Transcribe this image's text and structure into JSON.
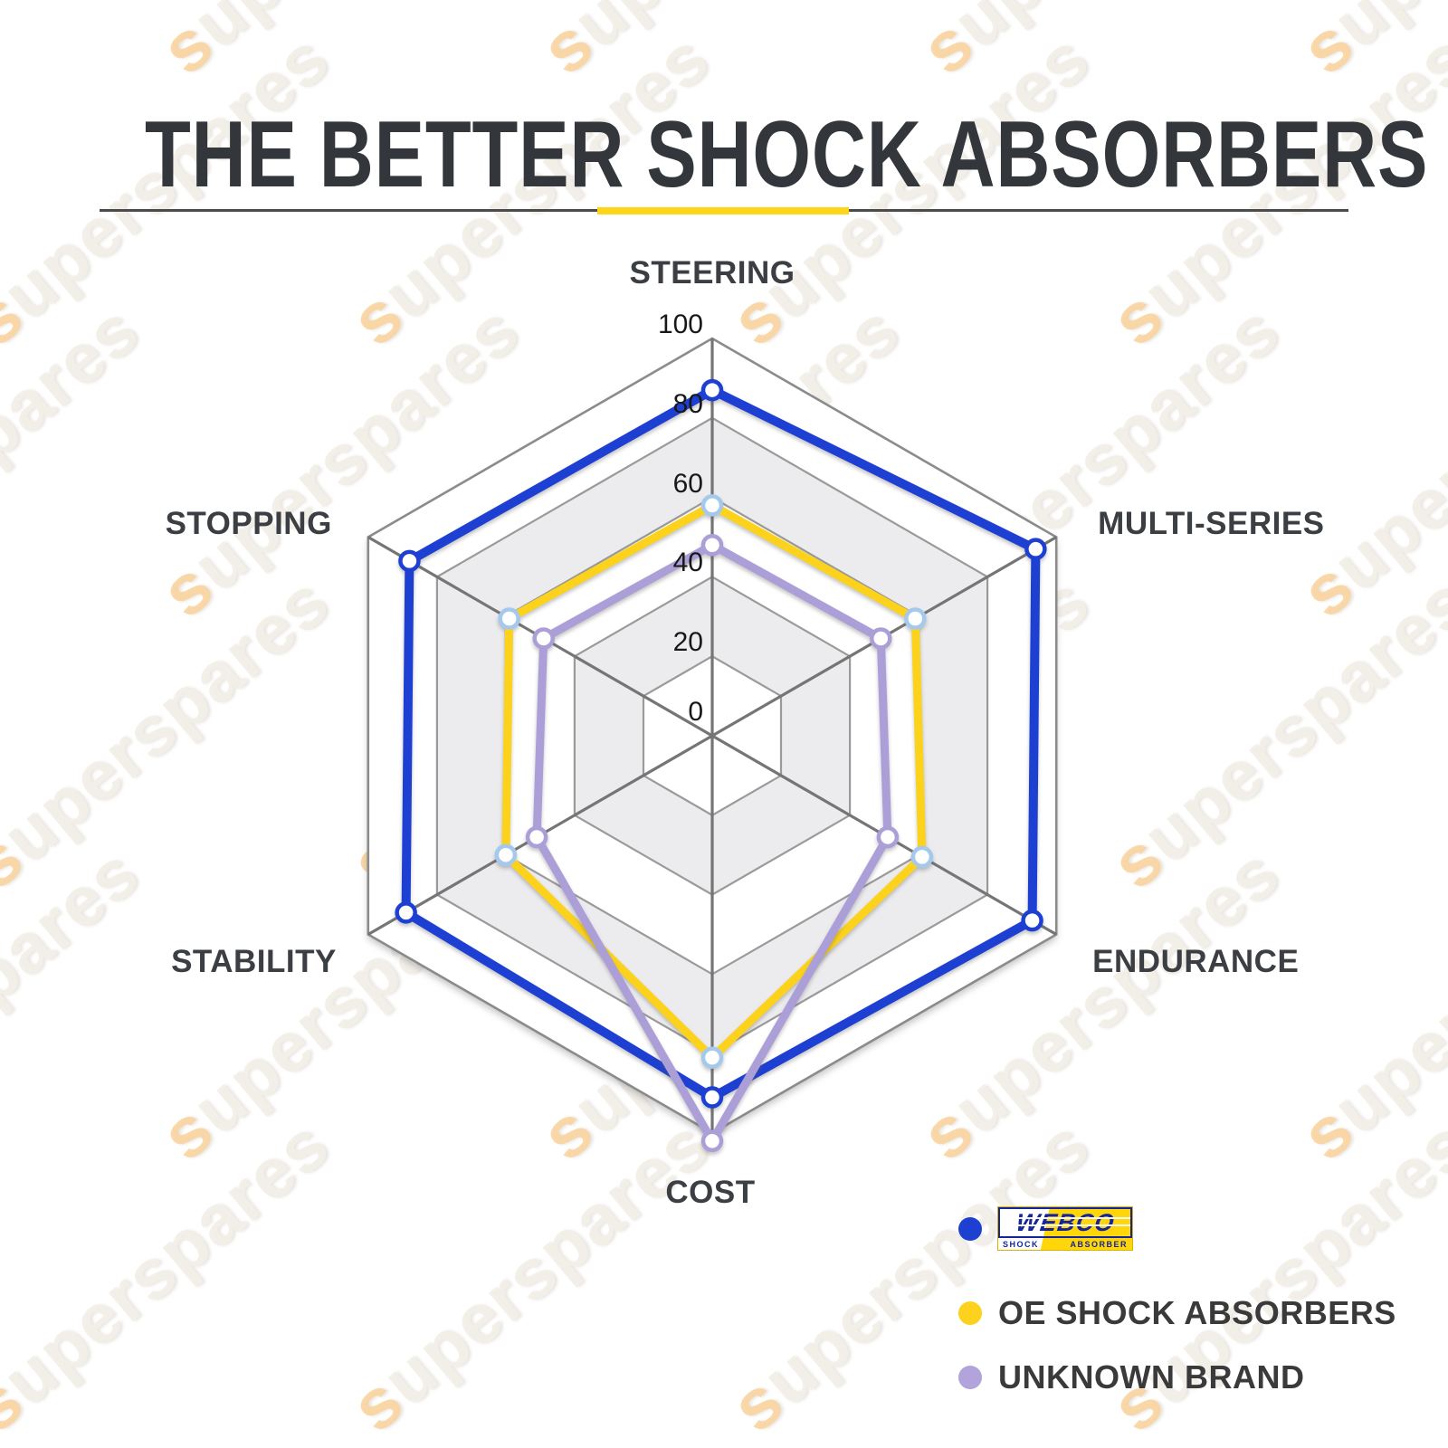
{
  "title": "THE BETTER SHOCK ABSORBERS",
  "watermark": {
    "text": "superspares"
  },
  "chart_data": {
    "type": "radar",
    "categories": [
      "STEERING",
      "MULTI-SERIES",
      "ENDURANCE",
      "COST",
      "STABILITY",
      "STOPPING"
    ],
    "series": [
      {
        "name": "WEBCO SHOCK ABSORBER",
        "color": "#1E40D2",
        "marker_ring": "#1E40D2",
        "values": [
          87,
          94,
          93,
          91,
          89,
          88
        ]
      },
      {
        "name": "OE SHOCK ABSORBERS",
        "color": "#FCD21C",
        "marker_ring": "#A5C9EC",
        "values": [
          58,
          59,
          61,
          81,
          60,
          59
        ]
      },
      {
        "name": "UNKNOWN BRAND",
        "color": "#AC9FD8",
        "marker_ring": "#AC9FD8",
        "values": [
          48,
          49,
          51,
          102,
          51,
          49
        ]
      }
    ],
    "ticks": [
      "0",
      "20",
      "40",
      "60",
      "80",
      "100"
    ],
    "axis_range": [
      0,
      100
    ],
    "grid": {
      "ring_color": "#9a9a9a",
      "spoke_color": "#757575",
      "band_fill": "#ececef",
      "shaded_bands": [
        [
          20,
          40
        ],
        [
          60,
          80
        ]
      ],
      "legend_position": "bottom-right"
    }
  },
  "legend": {
    "items": [
      {
        "dot_color": "#1E40D2",
        "type": "logo",
        "logo": {
          "word": "WEBCO",
          "sub_left": "SHOCK",
          "sub_right": "ABSORBER"
        }
      },
      {
        "dot_color": "#FCD21C",
        "type": "text",
        "label": "OE SHOCK ABSORBERS"
      },
      {
        "dot_color": "#B2A3DB",
        "type": "text",
        "label": "UNKNOWN BRAND"
      }
    ]
  }
}
